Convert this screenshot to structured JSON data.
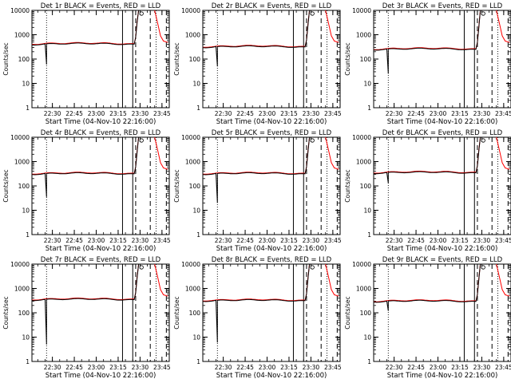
{
  "chart_data": [
    {
      "type": "line",
      "title": "Det 1r BLACK = Events, RED = LLD",
      "xlabel": "Start Time (04-Nov-10 22:16:00)",
      "ylabel": "Counts/sec",
      "level": 390,
      "dip": 60
    },
    {
      "type": "line",
      "title": "Det 2r BLACK = Events, RED = LLD",
      "xlabel": "Start Time (04-Nov-10 22:16:00)",
      "ylabel": "Counts/sec",
      "level": 300,
      "dip": 50
    },
    {
      "type": "line",
      "title": "Det 3r BLACK = Events, RED = LLD",
      "xlabel": "Start Time (04-Nov-10 22:16:00)",
      "ylabel": "Counts/sec",
      "level": 240,
      "dip": 25
    },
    {
      "type": "line",
      "title": "Det 4r BLACK = Events, RED = LLD",
      "xlabel": "Start Time (04-Nov-10 22:16:00)",
      "ylabel": "Counts/sec",
      "level": 300,
      "dip": 35
    },
    {
      "type": "line",
      "title": "Det 5r BLACK = Events, RED = LLD",
      "xlabel": "Start Time (04-Nov-10 22:16:00)",
      "ylabel": "Counts/sec",
      "level": 300,
      "dip": 20
    },
    {
      "type": "line",
      "title": "Det 6r BLACK = Events, RED = LLD",
      "xlabel": "Start Time (04-Nov-10 22:16:00)",
      "ylabel": "Counts/sec",
      "level": 330,
      "dip": 130
    },
    {
      "type": "line",
      "title": "Det 7r BLACK = Events, RED = LLD",
      "xlabel": "Start Time (04-Nov-10 22:16:00)",
      "ylabel": "Counts/sec",
      "level": 330,
      "dip": 5
    },
    {
      "type": "line",
      "title": "Det 8r BLACK = Events, RED = LLD",
      "xlabel": "Start Time (04-Nov-10 22:16:00)",
      "ylabel": "Counts/sec",
      "level": 300,
      "dip": 6
    },
    {
      "type": "line",
      "title": "Det 9r BLACK = Events, RED = LLD",
      "xlabel": "Start Time (04-Nov-10 22:16:00)",
      "ylabel": "Counts/sec",
      "level": 280,
      "dip": 120
    }
  ],
  "shared": {
    "x_ticks": [
      {
        "t": 30,
        "label": "22:30"
      },
      {
        "t": 45,
        "label": "22:45"
      },
      {
        "t": 60,
        "label": "23:00"
      },
      {
        "t": 75,
        "label": "23:15"
      },
      {
        "t": 90,
        "label": "23:30"
      },
      {
        "t": 105,
        "label": "23:45"
      }
    ],
    "xlim": [
      16,
      110
    ],
    "y_ticks": [
      {
        "v": 1,
        "label": "1"
      },
      {
        "v": 10,
        "label": "10"
      },
      {
        "v": 100,
        "label": "100"
      },
      {
        "v": 1000,
        "label": "1000"
      },
      {
        "v": 10000,
        "label": "10000"
      }
    ],
    "ylim": [
      1,
      10000
    ],
    "yscale": "log",
    "dotted_lines_t": [
      26,
      101
    ],
    "solid_lines_t": [
      78,
      85
    ],
    "dashed_lines_t": [
      87,
      97,
      108
    ],
    "series_colors": {
      "events": "#000000",
      "lld": "#ff0000"
    }
  }
}
